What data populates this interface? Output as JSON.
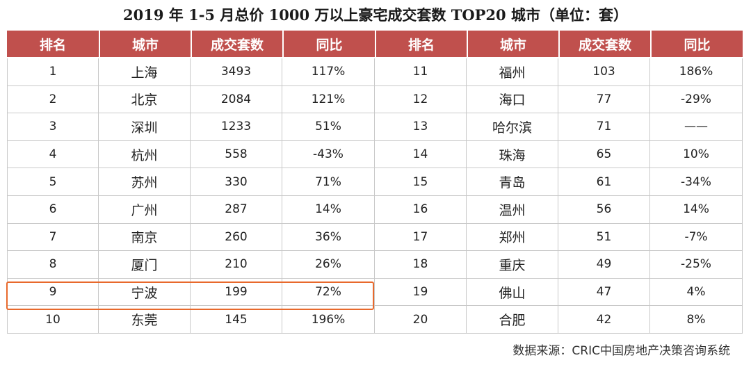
{
  "title": "2019 年 1-5 月总价 1000 万以上豪宅成交套数 TOP20 城市（单位：套）",
  "headers": [
    "排名",
    "城市",
    "成交套数",
    "同比",
    "排名",
    "城市",
    "成交套数",
    "同比"
  ],
  "rows": [
    {
      "rank_l": "1",
      "city_l": "上海",
      "count_l": "3493",
      "yoy_l": "117%",
      "rank_r": "11",
      "city_r": "福州",
      "count_r": "103",
      "yoy_r": "186%"
    },
    {
      "rank_l": "2",
      "city_l": "北京",
      "count_l": "2084",
      "yoy_l": "121%",
      "rank_r": "12",
      "city_r": "海口",
      "count_r": "77",
      "yoy_r": "-29%"
    },
    {
      "rank_l": "3",
      "city_l": "深圳",
      "count_l": "1233",
      "yoy_l": "51%",
      "rank_r": "13",
      "city_r": "哈尔滨",
      "count_r": "71",
      "yoy_r": "——"
    },
    {
      "rank_l": "4",
      "city_l": "杭州",
      "count_l": "558",
      "yoy_l": "-43%",
      "rank_r": "14",
      "city_r": "珠海",
      "count_r": "65",
      "yoy_r": "10%"
    },
    {
      "rank_l": "5",
      "city_l": "苏州",
      "count_l": "330",
      "yoy_l": "71%",
      "rank_r": "15",
      "city_r": "青岛",
      "count_r": "61",
      "yoy_r": "-34%"
    },
    {
      "rank_l": "6",
      "city_l": "广州",
      "count_l": "287",
      "yoy_l": "14%",
      "rank_r": "16",
      "city_r": "温州",
      "count_r": "56",
      "yoy_r": "14%"
    },
    {
      "rank_l": "7",
      "city_l": "南京",
      "count_l": "260",
      "yoy_l": "36%",
      "rank_r": "17",
      "city_r": "郑州",
      "count_r": "51",
      "yoy_r": "-7%"
    },
    {
      "rank_l": "8",
      "city_l": "厦门",
      "count_l": "210",
      "yoy_l": "26%",
      "rank_r": "18",
      "city_r": "重庆",
      "count_r": "49",
      "yoy_r": "-25%"
    },
    {
      "rank_l": "9",
      "city_l": "宁波",
      "count_l": "199",
      "yoy_l": "72%",
      "rank_r": "19",
      "city_r": "佛山",
      "count_r": "47",
      "yoy_r": "4%"
    },
    {
      "rank_l": "10",
      "city_l": "东莞",
      "count_l": "145",
      "yoy_l": "196%",
      "rank_r": "20",
      "city_r": "合肥",
      "count_r": "42",
      "yoy_r": "8%"
    }
  ],
  "source": "数据来源：CRIC中国房地产决策咨询系统",
  "colors": {
    "header_bg": "#c0504d",
    "highlight": "#e8692c"
  }
}
